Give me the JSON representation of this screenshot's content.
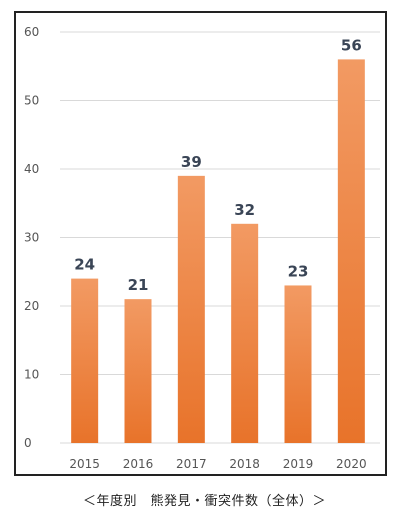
{
  "chart_data": {
    "type": "bar",
    "categories": [
      "2015",
      "2016",
      "2017",
      "2018",
      "2019",
      "2020"
    ],
    "values": [
      24,
      21,
      39,
      32,
      23,
      56
    ],
    "ylim": [
      0,
      60
    ],
    "yticks": [
      0,
      10,
      20,
      30,
      40,
      50,
      60
    ],
    "grid": true,
    "show_value_labels": true,
    "bar_color_top": "#f29a63",
    "bar_color_bottom": "#e8732a",
    "grid_color": "#d9d9d9",
    "label_color": "#3a4556",
    "caption": "＜年度別　熊発見・衝突件数（全体）＞"
  }
}
